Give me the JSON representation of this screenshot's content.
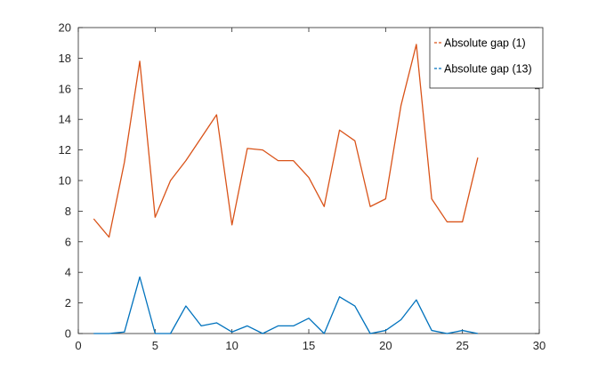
{
  "chart_data": {
    "type": "line",
    "title": "",
    "xlabel": "",
    "ylabel": "",
    "xlim": [
      0,
      30
    ],
    "ylim": [
      0,
      20
    ],
    "xticks": [
      0,
      5,
      10,
      15,
      20,
      25,
      30
    ],
    "yticks": [
      0,
      2,
      4,
      6,
      8,
      10,
      12,
      14,
      16,
      18,
      20
    ],
    "grid": false,
    "legend_position": "top-right",
    "series": [
      {
        "name": "Absolute gap (1)",
        "color": "#D95319",
        "x": [
          1,
          2,
          3,
          4,
          5,
          6,
          7,
          8,
          9,
          10,
          11,
          12,
          13,
          14,
          15,
          16,
          17,
          18,
          19,
          20,
          21,
          22,
          23,
          24,
          25,
          26
        ],
        "y": [
          7.5,
          6.3,
          11.2,
          17.8,
          7.6,
          10.0,
          11.3,
          12.8,
          14.3,
          7.1,
          12.1,
          12.0,
          11.3,
          11.3,
          10.2,
          8.3,
          13.3,
          12.6,
          8.3,
          8.8,
          14.9,
          18.9,
          8.8,
          7.3,
          7.3,
          11.5
        ]
      },
      {
        "name": "Absolute gap (13)",
        "color": "#0072BD",
        "x": [
          1,
          2,
          3,
          4,
          5,
          6,
          7,
          8,
          9,
          10,
          11,
          12,
          13,
          14,
          15,
          16,
          17,
          18,
          19,
          20,
          21,
          22,
          23,
          24,
          25,
          26
        ],
        "y": [
          0.0,
          0.0,
          0.1,
          3.7,
          0.0,
          0.0,
          1.8,
          0.5,
          0.7,
          0.1,
          0.5,
          0.0,
          0.5,
          0.5,
          1.0,
          0.0,
          2.4,
          1.8,
          0.0,
          0.2,
          0.9,
          2.2,
          0.2,
          0.0,
          0.2,
          0.0
        ]
      }
    ]
  }
}
